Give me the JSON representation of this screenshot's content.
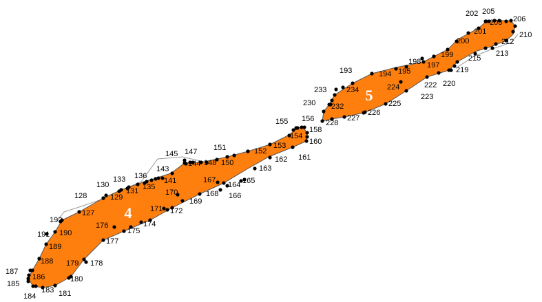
{
  "colors": {
    "parcel_fill": "#ff7f0e",
    "parcel_stroke": "#555555",
    "outline_stroke": "#999999",
    "vertex": "#000000",
    "label_text": "#000000",
    "parcel_label_text": "#ffffff"
  },
  "parcels": [
    {
      "id": "parcel-4",
      "label": "4"
    },
    {
      "id": "parcel-5",
      "label": "5"
    }
  ],
  "vertex_labels": [
    "127",
    "128",
    "129",
    "130",
    "131",
    "133",
    "135",
    "136",
    "141",
    "143",
    "144",
    "145",
    "147",
    "148",
    "150",
    "151",
    "152",
    "153",
    "154",
    "155",
    "156",
    "158",
    "160",
    "161",
    "162",
    "163",
    "164",
    "165",
    "166",
    "167",
    "168",
    "169",
    "170",
    "171",
    "172",
    "174",
    "175",
    "176",
    "177",
    "178",
    "179",
    "180",
    "181",
    "183",
    "184",
    "185",
    "186",
    "187",
    "188",
    "189",
    "190",
    "191",
    "192",
    "193",
    "194",
    "195",
    "197",
    "198",
    "199",
    "200",
    "201",
    "202",
    "203",
    "205",
    "206",
    "210",
    "212",
    "213",
    "215",
    "219",
    "220",
    "222",
    "223",
    "224",
    "225",
    "226",
    "227",
    "228",
    "230",
    "232",
    "233",
    "234"
  ]
}
